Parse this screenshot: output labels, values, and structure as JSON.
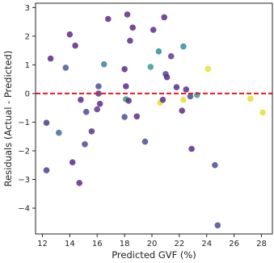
{
  "chart_data": {
    "type": "scatter",
    "title": "",
    "xlabel": "Predicted GVF (%)",
    "ylabel": "Residuals (Actual - Predicted)",
    "xlim": [
      11.5,
      28.8
    ],
    "ylim": [
      -4.9,
      3.15
    ],
    "xticks": [
      12,
      14,
      16,
      18,
      20,
      22,
      24,
      26,
      28
    ],
    "yticks": [
      -4,
      -3,
      -2,
      -1,
      0,
      1,
      2,
      3
    ],
    "grid": false,
    "reference_line": {
      "y": 0,
      "color": "#e31a1c",
      "style": "dashed"
    },
    "colormap": "viridis",
    "points": [
      {
        "x": 12.3,
        "y": -2.68,
        "c": "#4a3e87"
      },
      {
        "x": 12.3,
        "y": -1.02,
        "c": "#4a3e87"
      },
      {
        "x": 12.6,
        "y": 1.22,
        "c": "#592c84"
      },
      {
        "x": 13.2,
        "y": -1.37,
        "c": "#406a98"
      },
      {
        "x": 13.7,
        "y": 0.9,
        "c": "#4a5c96"
      },
      {
        "x": 14.0,
        "y": 2.06,
        "c": "#5d2c87"
      },
      {
        "x": 14.4,
        "y": 1.67,
        "c": "#5e2a86"
      },
      {
        "x": 14.2,
        "y": -2.4,
        "c": "#5e2a86"
      },
      {
        "x": 14.7,
        "y": -3.12,
        "c": "#5e2a86"
      },
      {
        "x": 14.8,
        "y": -0.22,
        "c": "#5e2a86"
      },
      {
        "x": 15.1,
        "y": -1.77,
        "c": "#4b4e96"
      },
      {
        "x": 15.2,
        "y": -0.64,
        "c": "#4b4e96"
      },
      {
        "x": 15.6,
        "y": -1.32,
        "c": "#5a3688"
      },
      {
        "x": 16.0,
        "y": -0.55,
        "c": "#5a3688"
      },
      {
        "x": 16.1,
        "y": 0.25,
        "c": "#4b4e96"
      },
      {
        "x": 16.1,
        "y": 0.0,
        "c": "#5a3688"
      },
      {
        "x": 16.2,
        "y": -0.36,
        "c": "#5e2a86"
      },
      {
        "x": 16.5,
        "y": 1.02,
        "c": "#3f7fa0"
      },
      {
        "x": 16.8,
        "y": 2.6,
        "c": "#5e2a86"
      },
      {
        "x": 18.0,
        "y": 0.85,
        "c": "#5e2a86"
      },
      {
        "x": 18.0,
        "y": -0.82,
        "c": "#4b4e96"
      },
      {
        "x": 18.1,
        "y": 0.25,
        "c": "#5e2a86"
      },
      {
        "x": 18.1,
        "y": -0.2,
        "c": "#2ea37c"
      },
      {
        "x": 18.2,
        "y": 2.76,
        "c": "#5e2a86"
      },
      {
        "x": 18.3,
        "y": -0.25,
        "c": "#5e2a86"
      },
      {
        "x": 18.4,
        "y": 1.84,
        "c": "#5e2a86"
      },
      {
        "x": 18.6,
        "y": 2.3,
        "c": "#5e2a86"
      },
      {
        "x": 18.9,
        "y": -0.8,
        "c": "#5e2a86"
      },
      {
        "x": 19.5,
        "y": -1.68,
        "c": "#4b4e96"
      },
      {
        "x": 19.9,
        "y": 0.93,
        "c": "#3c9a9a"
      },
      {
        "x": 20.1,
        "y": 2.22,
        "c": "#5e2a86"
      },
      {
        "x": 20.5,
        "y": 1.47,
        "c": "#2f8f9c"
      },
      {
        "x": 20.6,
        "y": -0.32,
        "c": "#e8de36"
      },
      {
        "x": 20.8,
        "y": -0.22,
        "c": "#5e2a86"
      },
      {
        "x": 20.9,
        "y": 2.66,
        "c": "#5e2a86"
      },
      {
        "x": 21.0,
        "y": 0.68,
        "c": "#4b4e96"
      },
      {
        "x": 21.1,
        "y": 0.57,
        "c": "#5e2a86"
      },
      {
        "x": 21.4,
        "y": 1.3,
        "c": "#5c3c8a"
      },
      {
        "x": 21.8,
        "y": 0.22,
        "c": "#5e2a86"
      },
      {
        "x": 22.2,
        "y": -0.6,
        "c": "#5e2a86"
      },
      {
        "x": 22.3,
        "y": 1.64,
        "c": "#2f8f9c"
      },
      {
        "x": 22.3,
        "y": -0.22,
        "c": "#e8de36"
      },
      {
        "x": 22.5,
        "y": 0.14,
        "c": "#5e2a86"
      },
      {
        "x": 22.8,
        "y": -0.1,
        "c": "#4b4e96"
      },
      {
        "x": 22.9,
        "y": -1.93,
        "c": "#5e2a86"
      },
      {
        "x": 23.3,
        "y": -0.05,
        "c": "#3c9a9a"
      },
      {
        "x": 24.1,
        "y": 0.86,
        "c": "#e8de36"
      },
      {
        "x": 24.6,
        "y": -2.5,
        "c": "#4b4e96"
      },
      {
        "x": 24.8,
        "y": -4.6,
        "c": "#4b4e96"
      },
      {
        "x": 27.2,
        "y": -0.18,
        "c": "#e8de36"
      },
      {
        "x": 28.1,
        "y": -0.66,
        "c": "#e8de36"
      }
    ]
  }
}
